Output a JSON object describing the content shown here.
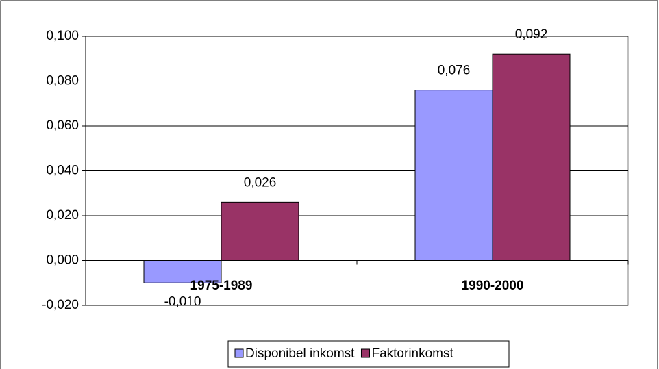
{
  "chart_data": {
    "type": "bar",
    "categories": [
      "1975-1989",
      "1990-2000"
    ],
    "series": [
      {
        "name": "Disponibel inkomst",
        "color": "#9999ff",
        "values": [
          -0.01,
          0.076
        ],
        "value_labels": [
          "-0,010",
          "0,076"
        ]
      },
      {
        "name": "Faktorinkomst",
        "color": "#993366",
        "values": [
          0.026,
          0.092
        ],
        "value_labels": [
          "0,026",
          "0,092"
        ]
      }
    ],
    "ylim": [
      -0.02,
      0.1
    ],
    "yticks": [
      {
        "value": -0.02,
        "label": "-0,020"
      },
      {
        "value": 0,
        "label": "0,000"
      },
      {
        "value": 0.02,
        "label": "0,020"
      },
      {
        "value": 0.04,
        "label": "0,040"
      },
      {
        "value": 0.06,
        "label": "0,060"
      },
      {
        "value": 0.08,
        "label": "0,080"
      },
      {
        "value": 0.1,
        "label": "0,100"
      }
    ],
    "grid": true,
    "legend": "bottom"
  }
}
